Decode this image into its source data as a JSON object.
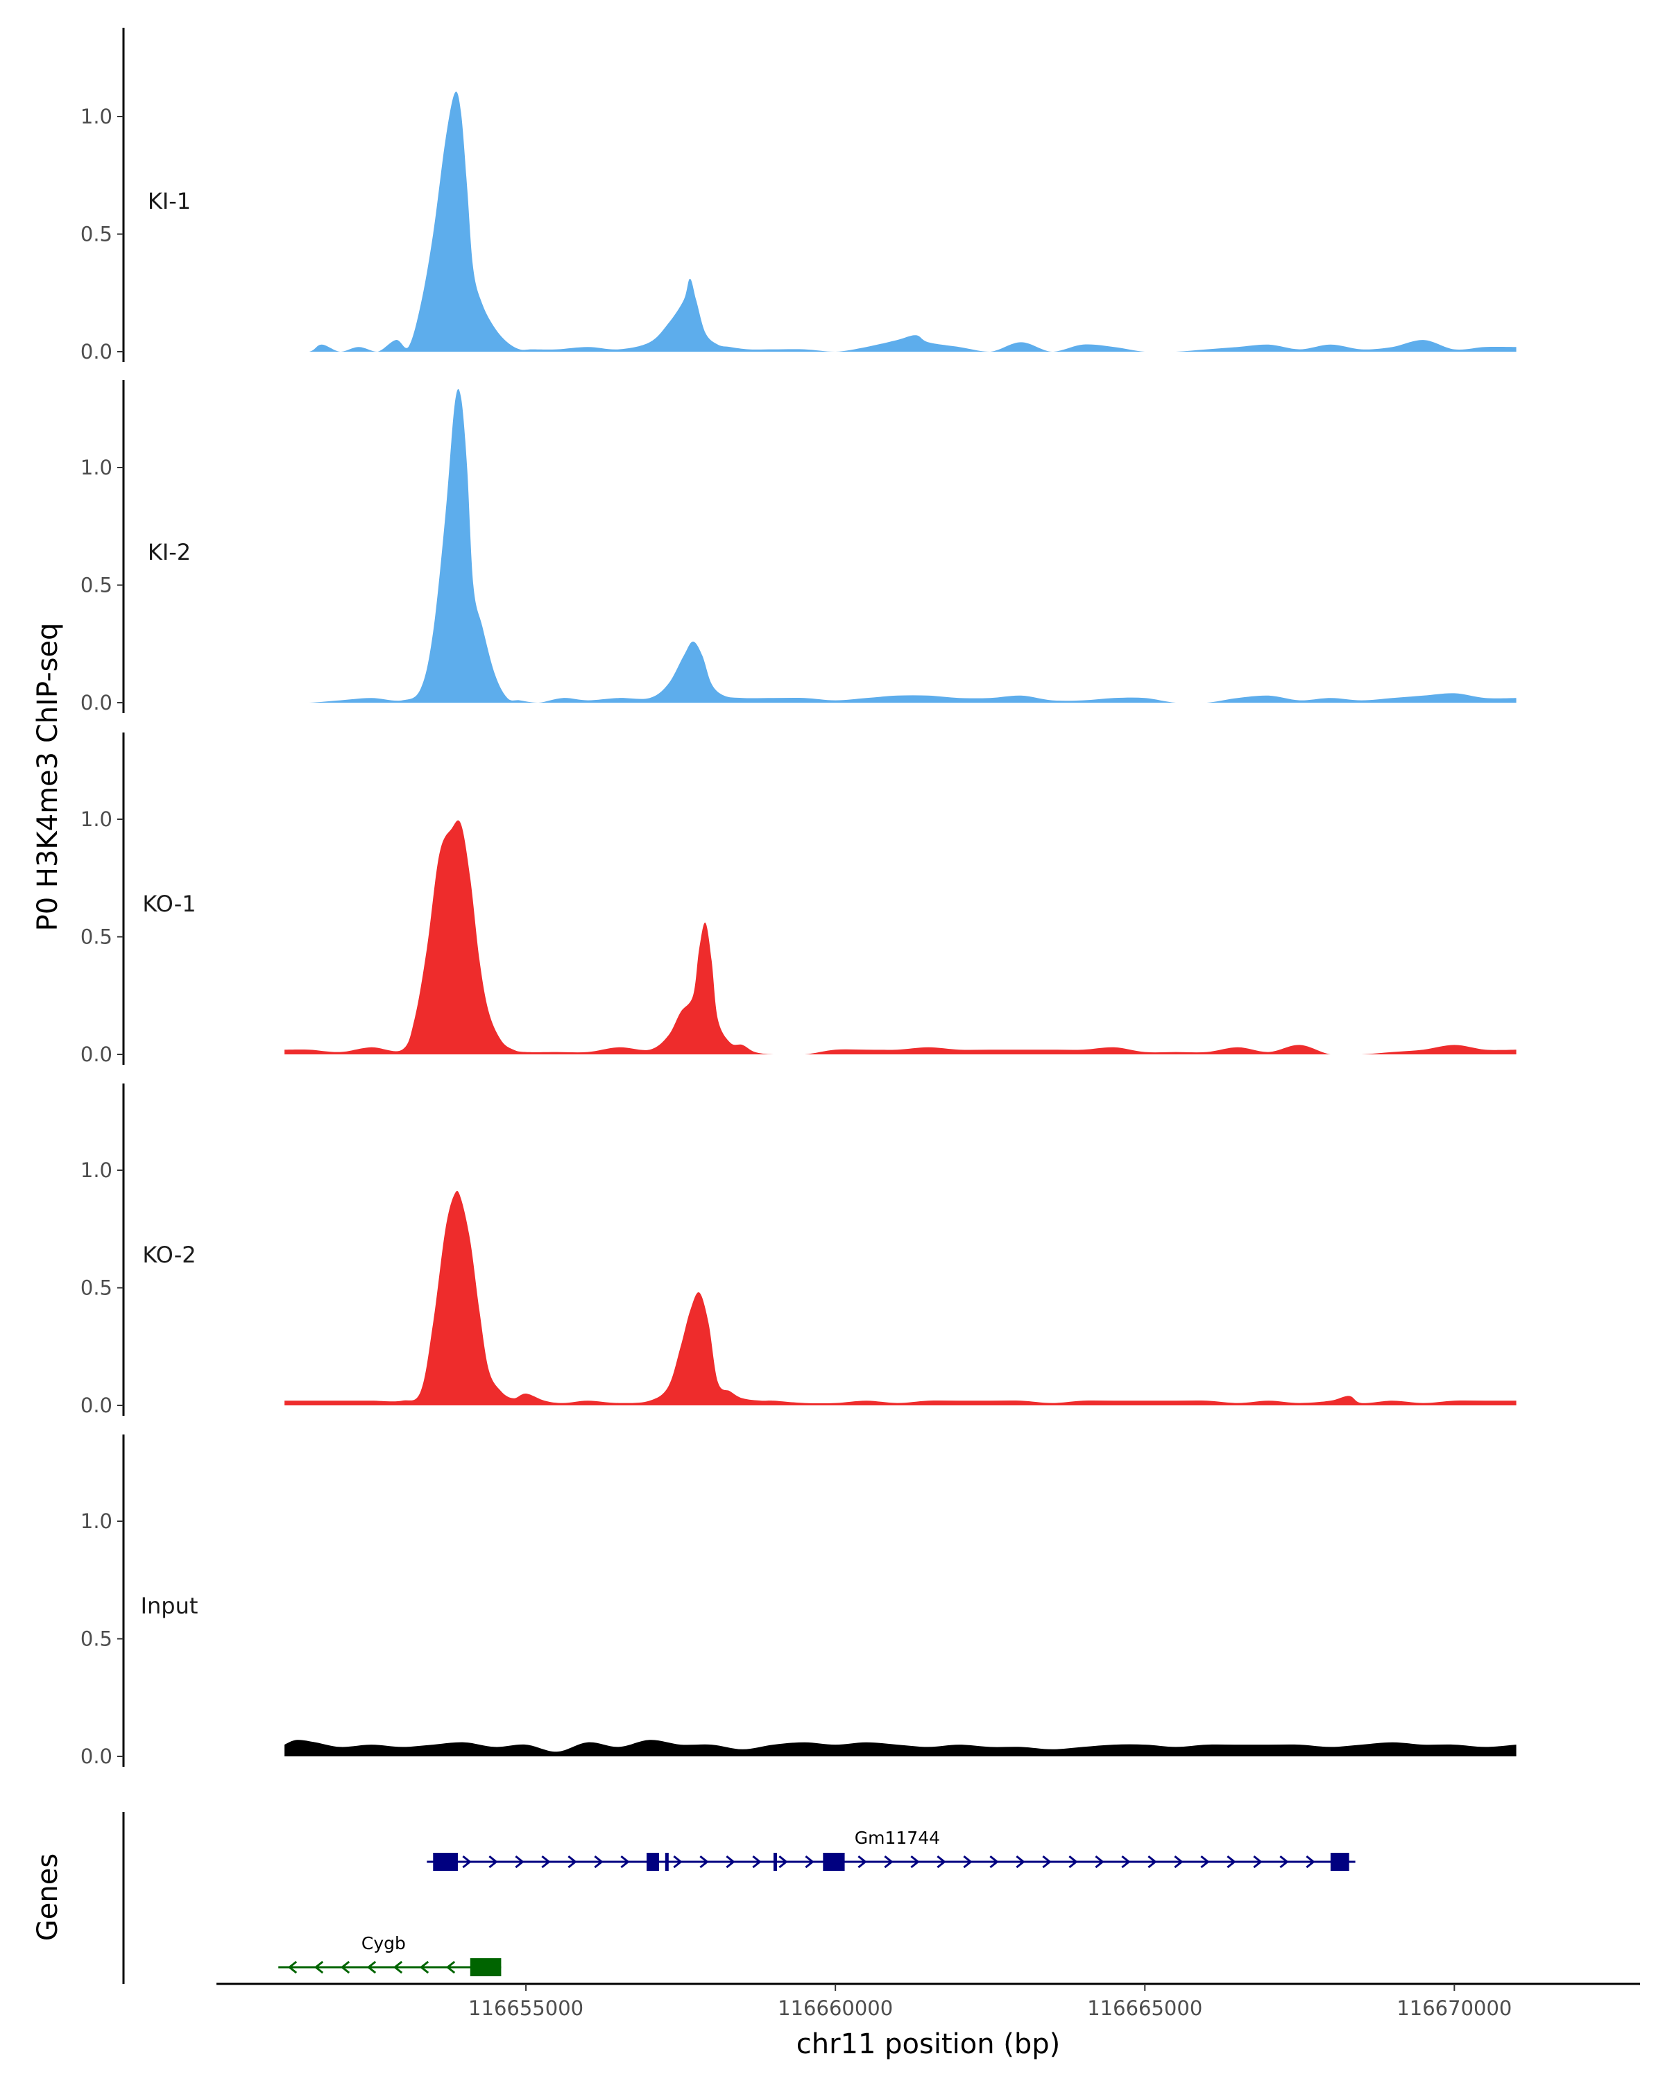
{
  "chart_data": {
    "type": "area",
    "title": "",
    "xlabel": "chr11 position (bp)",
    "ylabel": "P0 H3K4me3 ChIP-seq",
    "gene_track_label": "Genes",
    "xlim": [
      116650000,
      116673000
    ],
    "ylim": [
      0,
      1.35
    ],
    "x_ticks": [
      116655000,
      116660000,
      116665000,
      116670000
    ],
    "x_tick_labels": [
      "116655000",
      "116660000",
      "116665000",
      "116670000"
    ],
    "y_ticks": [
      0,
      0.5,
      1.0
    ],
    "y_tick_labels": [
      "0.0",
      "0.5",
      "1.0"
    ],
    "colors": {
      "KI": "#5DADEC",
      "KO": "#EE2C2C",
      "Input": "#000000",
      "gene_plus": "#000080",
      "gene_minus": "#006400"
    },
    "series": [
      {
        "name": "KI-1",
        "color": "#5DADEC",
        "x": [
          116651100,
          116651500,
          116651700,
          116652000,
          116652300,
          116652600,
          116652900,
          116653100,
          116653300,
          116653500,
          116653700,
          116653850,
          116653950,
          116654050,
          116654150,
          116654300,
          116654500,
          116654700,
          116654900,
          116655100,
          116655500,
          116656000,
          116656500,
          116657000,
          116657300,
          116657550,
          116657650,
          116657750,
          116657900,
          116658100,
          116658300,
          116658600,
          116659000,
          116659500,
          116660000,
          116660500,
          116661000,
          116661300,
          116661500,
          116662000,
          116662500,
          116663000,
          116663500,
          116664000,
          116664500,
          116665000,
          116665500,
          116666000,
          116666500,
          116667000,
          116667500,
          116668000,
          116668500,
          116669000,
          116669500,
          116670000,
          116670500,
          116671000
        ],
        "y": [
          0,
          0,
          0.03,
          0,
          0.02,
          0,
          0.05,
          0.02,
          0.2,
          0.5,
          0.9,
          1.1,
          1.02,
          0.7,
          0.35,
          0.2,
          0.1,
          0.04,
          0.01,
          0.01,
          0.01,
          0.02,
          0.01,
          0.04,
          0.12,
          0.22,
          0.31,
          0.22,
          0.08,
          0.03,
          0.02,
          0.01,
          0.01,
          0.01,
          0,
          0.02,
          0.05,
          0.07,
          0.04,
          0.02,
          0,
          0.04,
          0,
          0.03,
          0.02,
          0,
          0,
          0.01,
          0.02,
          0.03,
          0.01,
          0.03,
          0.01,
          0.02,
          0.05,
          0.01,
          0.02,
          0.02
        ]
      },
      {
        "name": "KI-2",
        "color": "#5DADEC",
        "x": [
          116651100,
          116651500,
          116652000,
          116652500,
          116653000,
          116653300,
          116653500,
          116653700,
          116653850,
          116653950,
          116654050,
          116654150,
          116654300,
          116654500,
          116654700,
          116654900,
          116655200,
          116655600,
          116656000,
          116656500,
          116657000,
          116657300,
          116657550,
          116657700,
          116657850,
          116658000,
          116658200,
          116658500,
          116659000,
          116659500,
          116660000,
          116660500,
          116661000,
          116661500,
          116662000,
          116662500,
          116663000,
          116663500,
          116664000,
          116664500,
          116665000,
          116665500,
          116666000,
          116666500,
          116667000,
          116667500,
          116668000,
          116668500,
          116669000,
          116669500,
          116670000,
          116670500,
          116671000
        ],
        "y": [
          0,
          0,
          0.01,
          0.02,
          0.01,
          0.06,
          0.3,
          0.8,
          1.27,
          1.3,
          1.0,
          0.5,
          0.32,
          0.12,
          0.02,
          0.01,
          0,
          0.02,
          0.01,
          0.02,
          0.02,
          0.08,
          0.2,
          0.26,
          0.2,
          0.08,
          0.03,
          0.02,
          0.02,
          0.02,
          0.01,
          0.02,
          0.03,
          0.03,
          0.02,
          0.02,
          0.03,
          0.01,
          0.01,
          0.02,
          0.02,
          0,
          0,
          0.02,
          0.03,
          0.01,
          0.02,
          0.01,
          0.02,
          0.03,
          0.04,
          0.02,
          0.02
        ]
      },
      {
        "name": "KO-1",
        "color": "#EE2C2C",
        "x": [
          116651100,
          116651500,
          116652000,
          116652500,
          116653000,
          116653200,
          116653400,
          116653600,
          116653800,
          116653950,
          116654100,
          116654250,
          116654400,
          116654600,
          116654800,
          116655000,
          116655500,
          116656000,
          116656500,
          116657000,
          116657300,
          116657500,
          116657700,
          116657800,
          116657900,
          116658000,
          116658100,
          116658300,
          116658500,
          116658700,
          116659000,
          116659500,
          116660000,
          116660500,
          116661000,
          116661500,
          116662000,
          116662500,
          116663000,
          116663500,
          116664000,
          116664500,
          116665000,
          116665500,
          116666000,
          116666500,
          116667000,
          116667500,
          116668000,
          116668500,
          116669000,
          116669500,
          116670000,
          116670500,
          116671000
        ],
        "y": [
          0.02,
          0.02,
          0.01,
          0.03,
          0.02,
          0.15,
          0.45,
          0.85,
          0.96,
          0.98,
          0.75,
          0.4,
          0.18,
          0.06,
          0.02,
          0.01,
          0.01,
          0.01,
          0.03,
          0.02,
          0.08,
          0.18,
          0.25,
          0.45,
          0.56,
          0.4,
          0.15,
          0.05,
          0.04,
          0.01,
          0,
          0,
          0.02,
          0.02,
          0.02,
          0.03,
          0.02,
          0.02,
          0.02,
          0.02,
          0.02,
          0.03,
          0.01,
          0.01,
          0.01,
          0.03,
          0.01,
          0.04,
          0,
          0,
          0.01,
          0.02,
          0.04,
          0.02,
          0.02
        ]
      },
      {
        "name": "KO-2",
        "color": "#EE2C2C",
        "x": [
          116651100,
          116651500,
          116652000,
          116652500,
          116653000,
          116653300,
          116653500,
          116653700,
          116653850,
          116653950,
          116654100,
          116654250,
          116654400,
          116654600,
          116654800,
          116655000,
          116655300,
          116655600,
          116656000,
          116656500,
          116657000,
          116657300,
          116657500,
          116657650,
          116657800,
          116657950,
          116658100,
          116658300,
          116658500,
          116658800,
          116659000,
          116659500,
          116660000,
          116660500,
          116661000,
          116661500,
          116662000,
          116662500,
          116663000,
          116663500,
          116664000,
          116664500,
          116665000,
          116665500,
          116666000,
          116666500,
          116667000,
          116667500,
          116668000,
          116668300,
          116668500,
          116669000,
          116669500,
          116670000,
          116670500,
          116671000
        ],
        "y": [
          0.02,
          0.02,
          0.02,
          0.02,
          0.02,
          0.06,
          0.35,
          0.75,
          0.9,
          0.88,
          0.7,
          0.4,
          0.15,
          0.06,
          0.03,
          0.05,
          0.02,
          0.01,
          0.02,
          0.01,
          0.02,
          0.08,
          0.25,
          0.4,
          0.48,
          0.35,
          0.1,
          0.06,
          0.03,
          0.02,
          0.02,
          0.01,
          0.01,
          0.02,
          0.01,
          0.02,
          0.02,
          0.02,
          0.02,
          0.01,
          0.02,
          0.02,
          0.02,
          0.02,
          0.02,
          0.01,
          0.02,
          0.01,
          0.02,
          0.04,
          0.01,
          0.02,
          0.01,
          0.02,
          0.02,
          0.02
        ]
      },
      {
        "name": "Input",
        "color": "#000000",
        "x": [
          116651100,
          116651300,
          116651600,
          116652000,
          116652500,
          116653000,
          116653500,
          116654000,
          116654500,
          116655000,
          116655500,
          116656000,
          116656500,
          116657000,
          116657500,
          116658000,
          116658500,
          116659000,
          116659500,
          116660000,
          116660500,
          116661000,
          116661500,
          116662000,
          116662500,
          116663000,
          116663500,
          116664000,
          116664500,
          116665000,
          116665500,
          116666000,
          116666500,
          116667000,
          116667500,
          116668000,
          116668500,
          116669000,
          116669500,
          116670000,
          116670500,
          116671000
        ],
        "y": [
          0.05,
          0.07,
          0.06,
          0.04,
          0.05,
          0.04,
          0.05,
          0.06,
          0.04,
          0.05,
          0.02,
          0.06,
          0.04,
          0.07,
          0.05,
          0.05,
          0.03,
          0.05,
          0.06,
          0.05,
          0.06,
          0.05,
          0.04,
          0.05,
          0.04,
          0.04,
          0.03,
          0.04,
          0.05,
          0.05,
          0.04,
          0.05,
          0.05,
          0.05,
          0.05,
          0.04,
          0.05,
          0.06,
          0.05,
          0.05,
          0.04,
          0.05
        ]
      }
    ],
    "genes": [
      {
        "name": "Gm11744",
        "strand": "+",
        "color": "#000080",
        "start": 116653400,
        "end": 116668400,
        "exons": [
          [
            116653500,
            116653900
          ],
          [
            116656950,
            116657150
          ],
          [
            116657250,
            116657300
          ],
          [
            116659000,
            116659050
          ],
          [
            116659800,
            116660150
          ],
          [
            116668000,
            116668300
          ]
        ]
      },
      {
        "name": "Cygb",
        "strand": "-",
        "color": "#006400",
        "start": 116651000,
        "end": 116654600,
        "exons": [
          [
            116654100,
            116654600
          ]
        ]
      }
    ]
  }
}
